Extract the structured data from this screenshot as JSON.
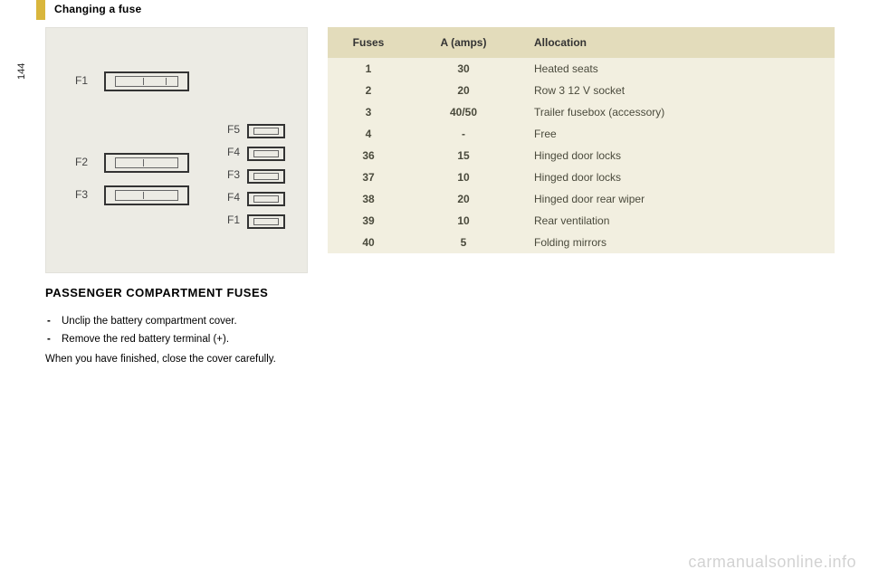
{
  "page": {
    "section_title": "Changing a fuse",
    "number": "144"
  },
  "diagram": {
    "labels_left": [
      "F1",
      "F2",
      "F3"
    ],
    "labels_right": [
      "F5",
      "F4",
      "F3",
      "F4",
      "F1"
    ]
  },
  "subheading": "PASSENGER COMPARTMENT FUSES",
  "instructions": {
    "items": [
      "Unclip the battery compartment cover.",
      "Remove the red battery terminal (+)."
    ],
    "closing": "When you have finished, close the cover carefully."
  },
  "fuse_table": {
    "headers": {
      "c1": "Fuses",
      "c2": "A (amps)",
      "c3": "Allocation"
    },
    "rows": [
      {
        "fuse": "1",
        "amps": "30",
        "allocation": "Heated seats"
      },
      {
        "fuse": "2",
        "amps": "20",
        "allocation": "Row 3 12 V socket"
      },
      {
        "fuse": "3",
        "amps": "40/50",
        "allocation": "Trailer fusebox (accessory)"
      },
      {
        "fuse": "4",
        "amps": "-",
        "allocation": "Free"
      },
      {
        "fuse": "36",
        "amps": "15",
        "allocation": "Hinged door locks"
      },
      {
        "fuse": "37",
        "amps": "10",
        "allocation": "Hinged door locks"
      },
      {
        "fuse": "38",
        "amps": "20",
        "allocation": "Hinged door rear wiper"
      },
      {
        "fuse": "39",
        "amps": "10",
        "allocation": "Rear ventilation"
      },
      {
        "fuse": "40",
        "amps": "5",
        "allocation": "Folding mirrors"
      }
    ],
    "style": {
      "header_bg": "#e3dcbb",
      "row_bg": "#f2efe0",
      "text_color": "#4a4a3c",
      "font_size": 12
    }
  },
  "watermark": "carmanualsonline.info"
}
